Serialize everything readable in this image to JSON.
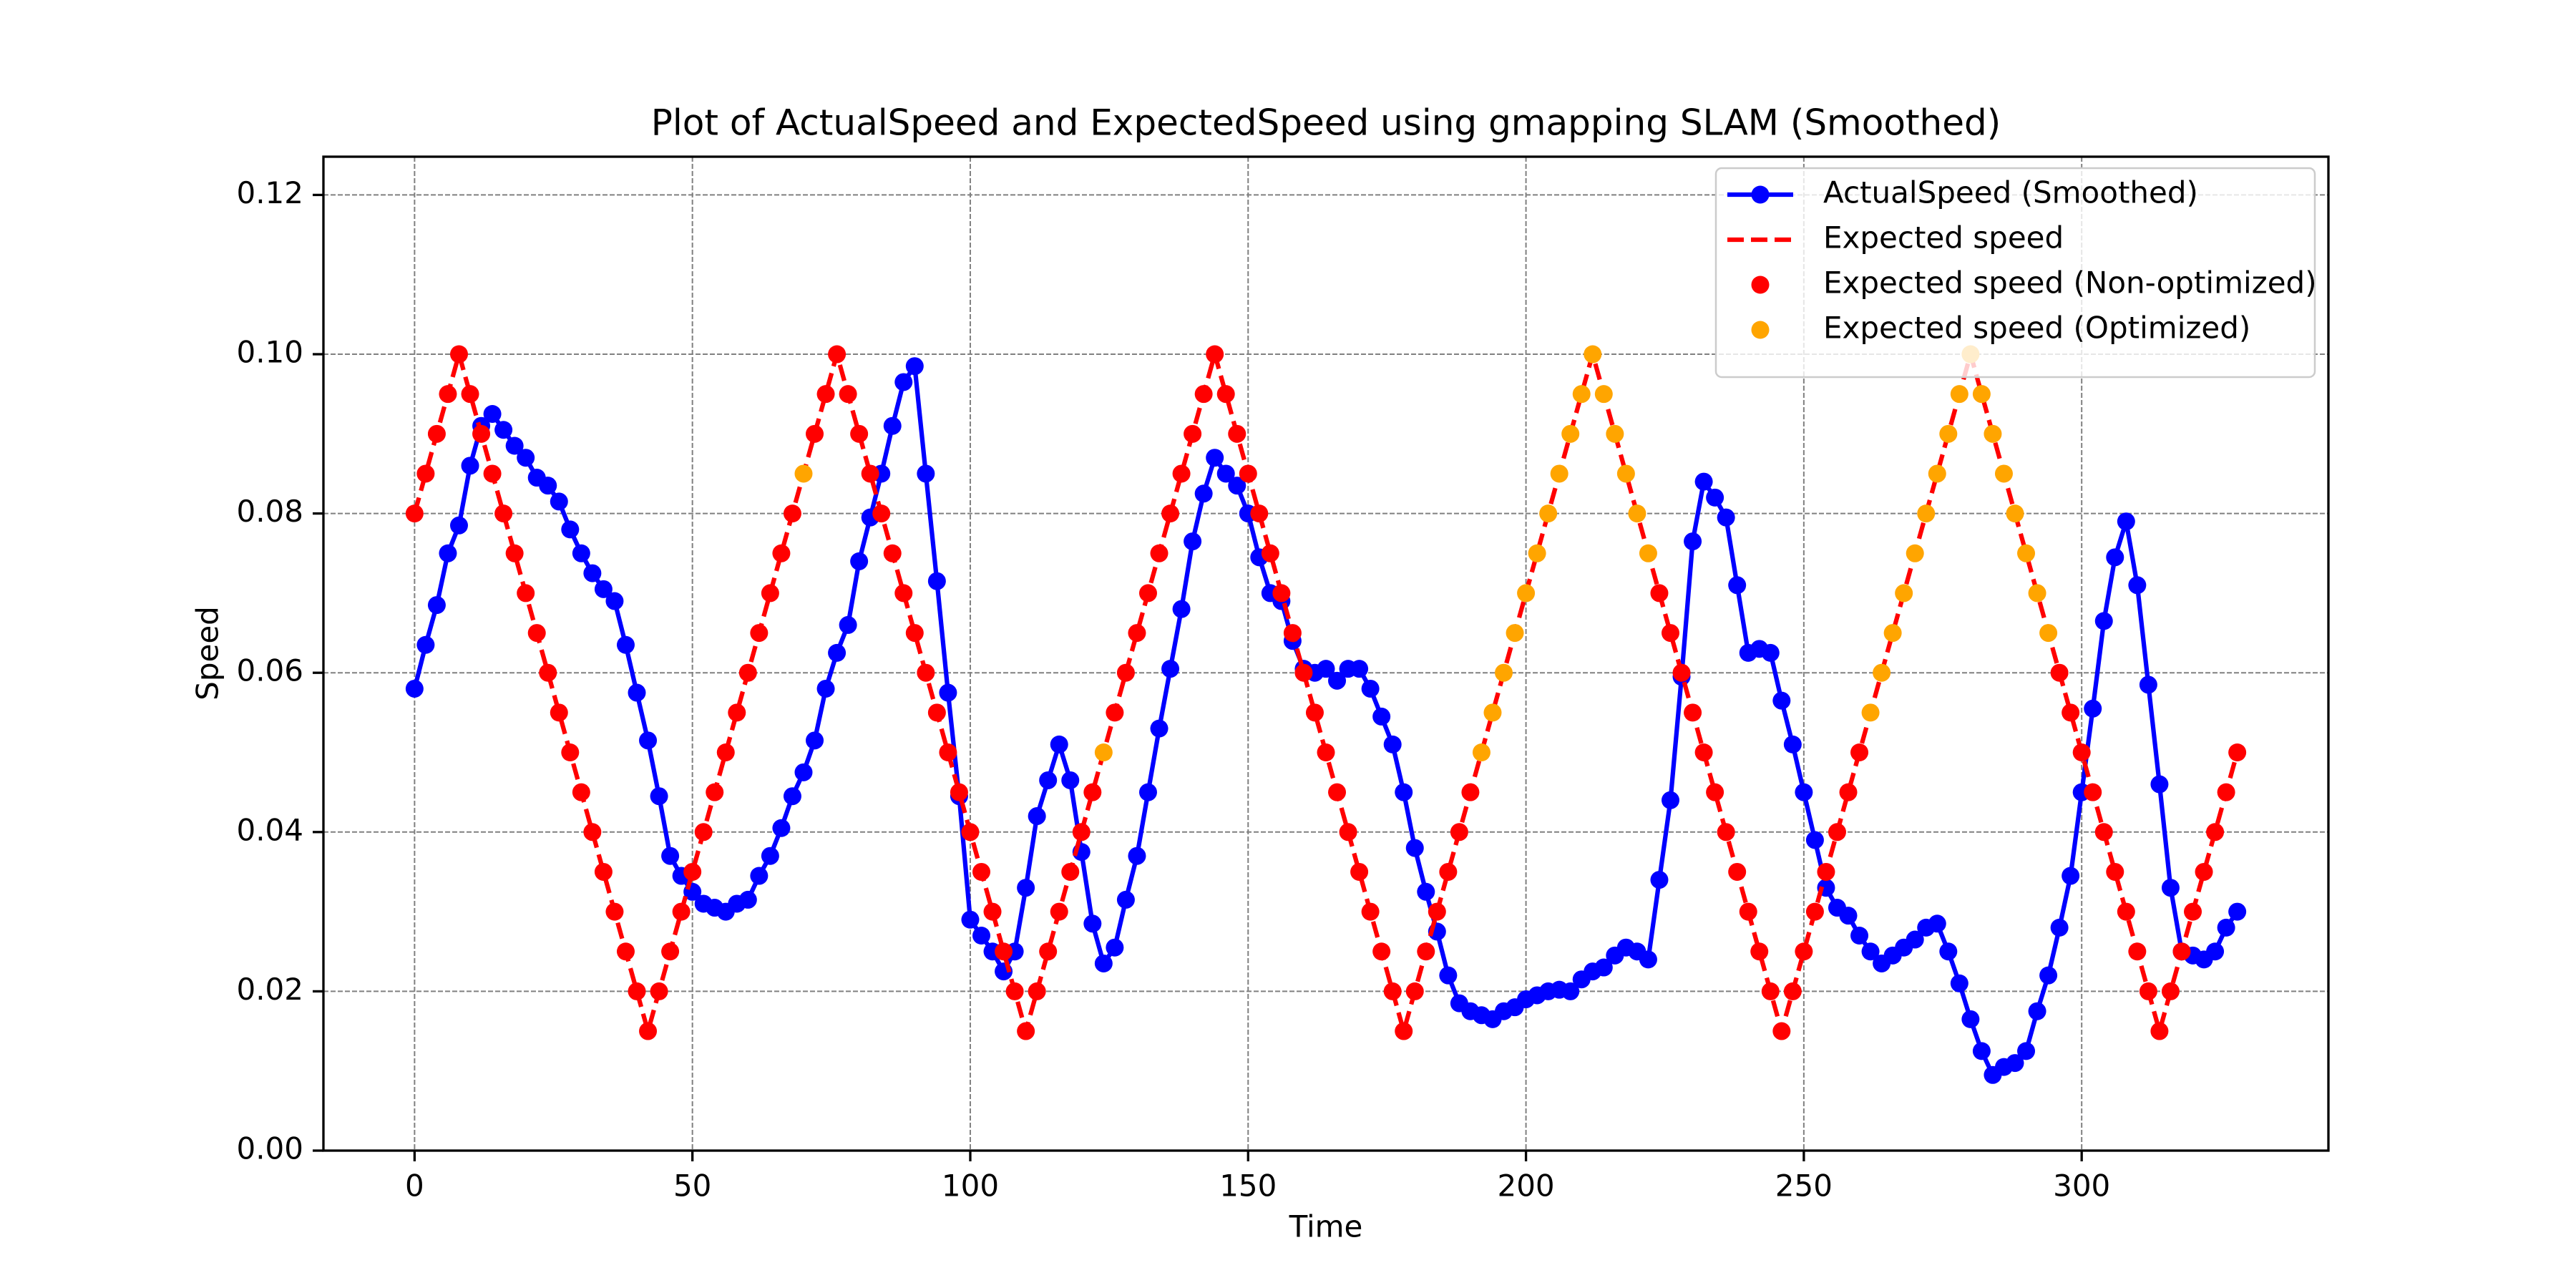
{
  "chart_data": {
    "type": "line",
    "title": "Plot of ActualSpeed and ExpectedSpeed using gmapping SLAM (Smoothed)",
    "xlabel": "Time",
    "ylabel": "Speed",
    "xlim": [
      -16.4,
      344.4
    ],
    "ylim": [
      0,
      0.1248
    ],
    "xticks": [
      0,
      50,
      100,
      150,
      200,
      250,
      300
    ],
    "yticks": [
      {
        "value": 0,
        "label": "0.00"
      },
      {
        "value": 0.02,
        "label": "0.02"
      },
      {
        "value": 0.04,
        "label": "0.04"
      },
      {
        "value": 0.06,
        "label": "0.06"
      },
      {
        "value": 0.08,
        "label": "0.08"
      },
      {
        "value": 0.1,
        "label": "0.10"
      },
      {
        "value": 0.12,
        "label": "0.12"
      }
    ],
    "grid": true,
    "legend": "upper right",
    "x": [
      0,
      2,
      4,
      6,
      8,
      10,
      12,
      14,
      16,
      18,
      20,
      22,
      24,
      26,
      28,
      30,
      32,
      34,
      36,
      38,
      40,
      42,
      44,
      46,
      48,
      50,
      52,
      54,
      56,
      58,
      60,
      62,
      64,
      66,
      68,
      70,
      72,
      74,
      76,
      78,
      80,
      82,
      84,
      86,
      88,
      90,
      92,
      94,
      96,
      98,
      100,
      102,
      104,
      106,
      108,
      110,
      112,
      114,
      116,
      118,
      120,
      122,
      124,
      126,
      128,
      130,
      132,
      134,
      136,
      138,
      140,
      142,
      144,
      146,
      148,
      150,
      152,
      154,
      156,
      158,
      160,
      162,
      164,
      166,
      168,
      170,
      172,
      174,
      176,
      178,
      180,
      182,
      184,
      186,
      188,
      190,
      192,
      194,
      196,
      198,
      200,
      202,
      204,
      206,
      208,
      210,
      212,
      214,
      216,
      218,
      220,
      222,
      224,
      226,
      228,
      230,
      232,
      234,
      236,
      238,
      240,
      242,
      244,
      246,
      248,
      250,
      252,
      254,
      256,
      258,
      260,
      262,
      264,
      266,
      268,
      270,
      272,
      274,
      276,
      278,
      280,
      282,
      284,
      286,
      288,
      290,
      292,
      294,
      296,
      298,
      300,
      302,
      304,
      306,
      308,
      310,
      312,
      314,
      316,
      318,
      320,
      322,
      324,
      326,
      328
    ],
    "series": [
      {
        "name": "ActualSpeed (Smoothed)",
        "color": "#0000ff",
        "style": "line-marker",
        "values": [
          0.058,
          0.0635,
          0.0685,
          0.075,
          0.0785,
          0.086,
          0.091,
          0.0925,
          0.0905,
          0.0885,
          0.087,
          0.0845,
          0.0835,
          0.0815,
          0.078,
          0.075,
          0.0725,
          0.0705,
          0.069,
          0.0635,
          0.0575,
          0.0515,
          0.0445,
          0.037,
          0.0345,
          0.0325,
          0.031,
          0.0305,
          0.03,
          0.031,
          0.0315,
          0.0345,
          0.037,
          0.0405,
          0.0445,
          0.0475,
          0.0515,
          0.058,
          0.0625,
          0.066,
          0.074,
          0.0795,
          0.085,
          0.091,
          0.0965,
          0.0985,
          0.085,
          0.0715,
          0.0575,
          0.0445,
          0.029,
          0.027,
          0.025,
          0.0225,
          0.025,
          0.033,
          0.042,
          0.0465,
          0.051,
          0.0465,
          0.0375,
          0.0285,
          0.0235,
          0.0255,
          0.0315,
          0.037,
          0.045,
          0.053,
          0.0605,
          0.068,
          0.0765,
          0.0825,
          0.087,
          0.085,
          0.0835,
          0.08,
          0.0745,
          0.07,
          0.069,
          0.064,
          0.0605,
          0.06,
          0.0605,
          0.059,
          0.0605,
          0.0605,
          0.058,
          0.0545,
          0.051,
          0.045,
          0.038,
          0.0325,
          0.0275,
          0.022,
          0.0185,
          0.0175,
          0.017,
          0.0165,
          0.0175,
          0.018,
          0.019,
          0.0195,
          0.02,
          0.0202,
          0.02,
          0.0215,
          0.0225,
          0.023,
          0.0245,
          0.0255,
          0.025,
          0.024,
          0.034,
          0.044,
          0.0595,
          0.0765,
          0.084,
          0.082,
          0.0795,
          0.071,
          0.0625,
          0.063,
          0.0625,
          0.0565,
          0.051,
          0.045,
          0.039,
          0.033,
          0.0305,
          0.0295,
          0.027,
          0.025,
          0.0235,
          0.0245,
          0.0255,
          0.0265,
          0.028,
          0.0285,
          0.025,
          0.021,
          0.0165,
          0.0125,
          0.0095,
          0.0105,
          0.011,
          0.0125,
          0.0175,
          0.022,
          0.028,
          0.0345,
          0.045,
          0.0555,
          0.0665,
          0.0745,
          0.079,
          0.071,
          0.0585,
          0.046,
          0.033,
          0.025,
          0.0245,
          0.024,
          0.025,
          0.028,
          0.03
        ]
      },
      {
        "name": "Expected speed",
        "color": "#ff0000",
        "style": "dashed",
        "values": [
          0.08,
          0.085,
          0.09,
          0.095,
          0.1,
          0.095,
          0.09,
          0.085,
          0.08,
          0.075,
          0.07,
          0.065,
          0.06,
          0.055,
          0.05,
          0.045,
          0.04,
          0.035,
          0.03,
          0.025,
          0.02,
          0.015,
          0.02,
          0.025,
          0.03,
          0.035,
          0.04,
          0.045,
          0.05,
          0.055,
          0.06,
          0.065,
          0.07,
          0.075,
          0.08,
          0.085,
          0.09,
          0.095,
          0.1,
          0.095,
          0.09,
          0.085,
          0.08,
          0.075,
          0.07,
          0.065,
          0.06,
          0.055,
          0.05,
          0.045,
          0.04,
          0.035,
          0.03,
          0.025,
          0.02,
          0.015,
          0.02,
          0.025,
          0.03,
          0.035,
          0.04,
          0.045,
          0.05,
          0.055,
          0.06,
          0.065,
          0.07,
          0.075,
          0.08,
          0.085,
          0.09,
          0.095,
          0.1,
          0.095,
          0.09,
          0.085,
          0.08,
          0.075,
          0.07,
          0.065,
          0.06,
          0.055,
          0.05,
          0.045,
          0.04,
          0.035,
          0.03,
          0.025,
          0.02,
          0.015,
          0.02,
          0.025,
          0.03,
          0.035,
          0.04,
          0.045,
          0.05,
          0.055,
          0.06,
          0.065,
          0.07,
          0.075,
          0.08,
          0.085,
          0.09,
          0.095,
          0.1,
          0.095,
          0.09,
          0.085,
          0.08,
          0.075,
          0.07,
          0.065,
          0.06,
          0.055,
          0.05,
          0.045,
          0.04,
          0.035,
          0.03,
          0.025,
          0.02,
          0.015,
          0.02,
          0.025,
          0.03,
          0.035,
          0.04,
          0.045,
          0.05,
          0.055,
          0.06,
          0.065,
          0.07,
          0.075,
          0.08,
          0.085,
          0.09,
          0.095,
          0.1,
          0.095,
          0.09,
          0.085,
          0.08,
          0.075,
          0.07,
          0.065,
          0.06,
          0.055,
          0.05,
          0.045,
          0.04,
          0.035,
          0.03,
          0.025,
          0.02,
          0.015,
          0.02,
          0.025,
          0.03,
          0.035,
          0.04,
          0.045,
          0.05
        ]
      },
      {
        "name": "Expected speed (Non-optimized)",
        "color": "#ff0000",
        "style": "scatter"
      },
      {
        "name": "Expected speed (Optimized)",
        "color": "#ffa500",
        "style": "scatter"
      }
    ],
    "optimized": [
      false,
      false,
      false,
      false,
      false,
      false,
      false,
      false,
      false,
      false,
      false,
      false,
      false,
      false,
      false,
      false,
      false,
      false,
      false,
      false,
      false,
      false,
      false,
      false,
      false,
      false,
      false,
      false,
      false,
      false,
      false,
      false,
      false,
      false,
      false,
      true,
      false,
      false,
      false,
      false,
      false,
      false,
      false,
      false,
      false,
      false,
      false,
      false,
      false,
      false,
      false,
      false,
      false,
      false,
      false,
      false,
      false,
      false,
      false,
      false,
      false,
      false,
      true,
      false,
      false,
      false,
      false,
      false,
      false,
      false,
      false,
      false,
      false,
      false,
      false,
      false,
      false,
      false,
      false,
      false,
      false,
      false,
      false,
      false,
      false,
      false,
      false,
      false,
      false,
      false,
      false,
      false,
      false,
      false,
      false,
      false,
      true,
      true,
      true,
      true,
      true,
      true,
      true,
      true,
      true,
      true,
      true,
      true,
      true,
      true,
      true,
      true,
      false,
      false,
      false,
      false,
      false,
      false,
      false,
      false,
      false,
      false,
      false,
      false,
      false,
      false,
      false,
      false,
      false,
      false,
      false,
      true,
      true,
      true,
      true,
      true,
      true,
      true,
      true,
      true,
      true,
      true,
      true,
      true,
      true,
      true,
      true,
      true,
      false,
      false,
      false,
      false,
      false,
      false,
      false,
      false,
      false,
      false,
      false,
      false,
      false,
      false,
      false,
      false,
      false
    ]
  }
}
